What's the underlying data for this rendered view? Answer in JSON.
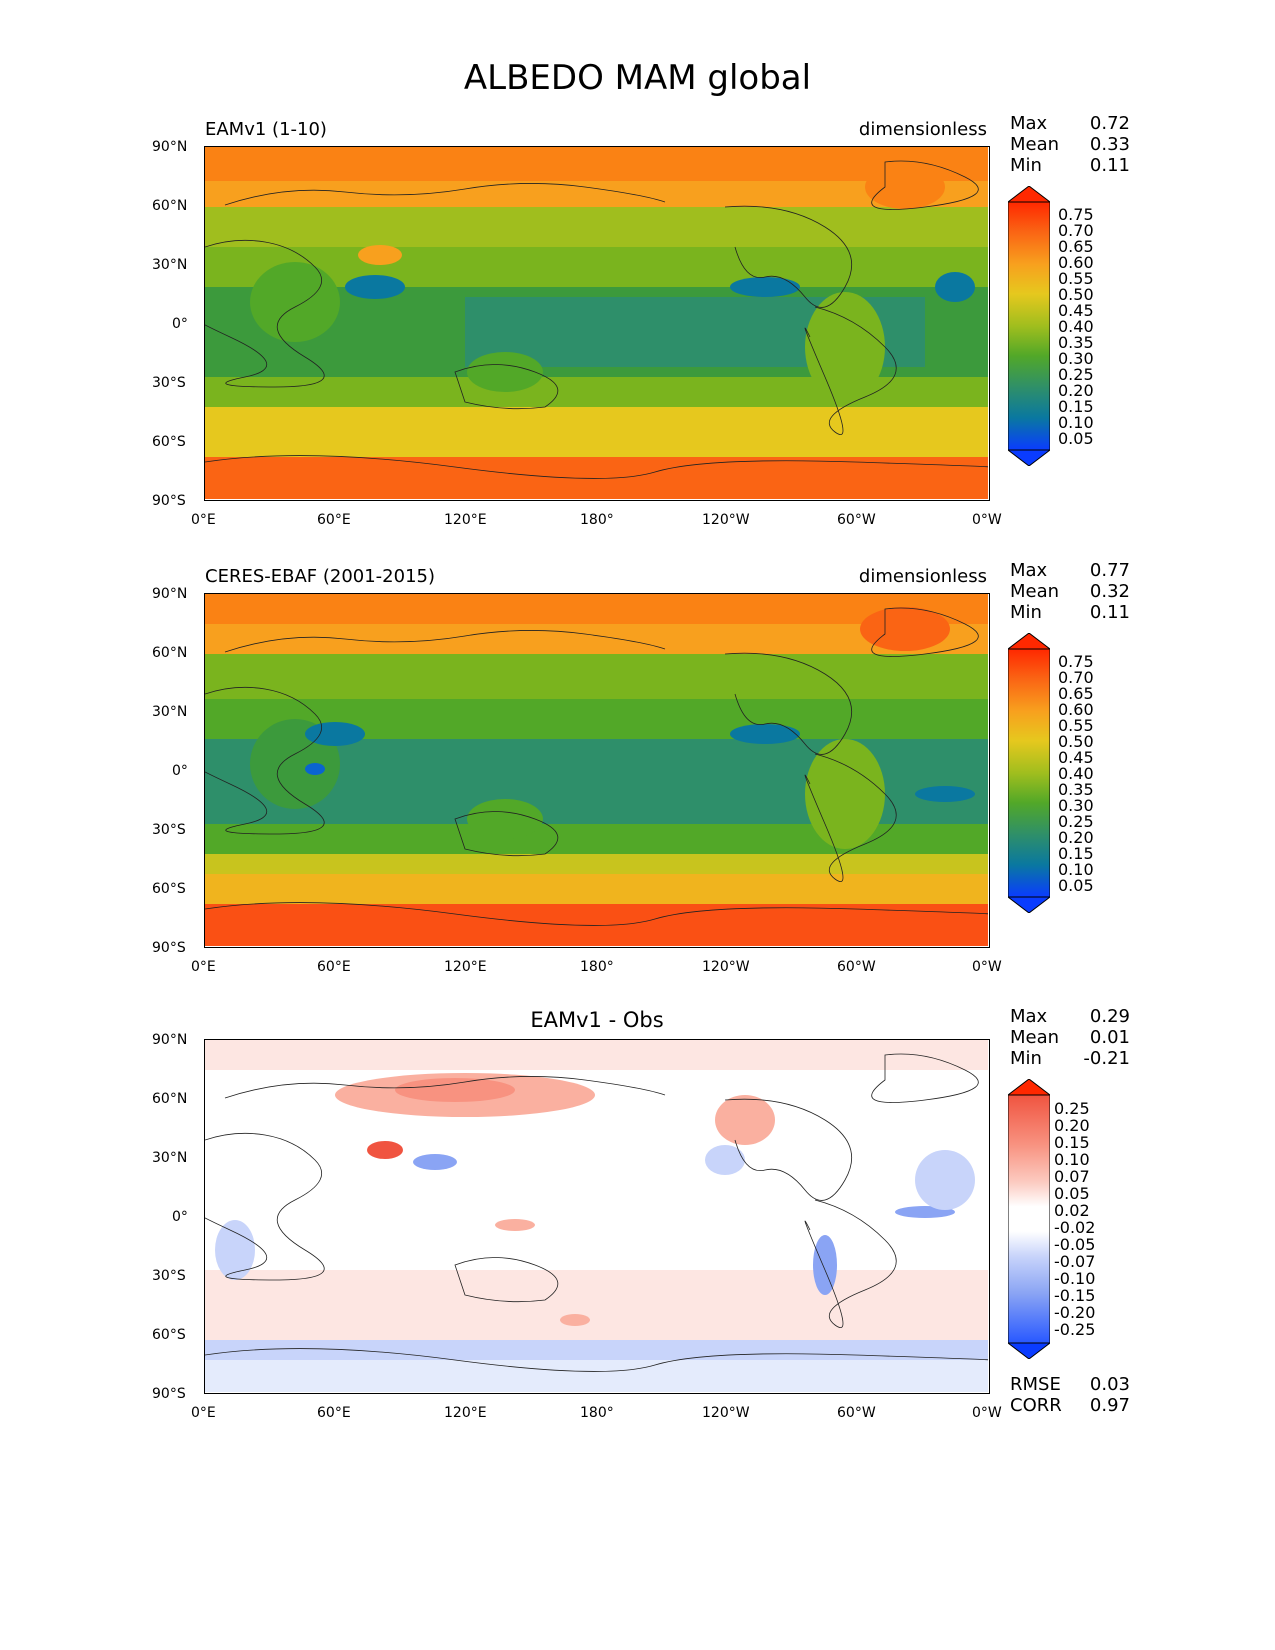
{
  "title": "ALBEDO MAM global",
  "panels": [
    {
      "title": "EAMv1 (1-10)",
      "units": "dimensionless",
      "stats": [
        {
          "label": "Max",
          "value": "0.72"
        },
        {
          "label": "Mean",
          "value": "0.33"
        },
        {
          "label": "Min",
          "value": "0.11"
        }
      ],
      "colorbar_labels": [
        "0.75",
        "0.70",
        "0.65",
        "0.60",
        "0.55",
        "0.50",
        "0.45",
        "0.40",
        "0.35",
        "0.30",
        "0.25",
        "0.20",
        "0.15",
        "0.10",
        "0.05"
      ]
    },
    {
      "title": "CERES-EBAF (2001-2015)",
      "units": "dimensionless",
      "stats": [
        {
          "label": "Max",
          "value": "0.77"
        },
        {
          "label": "Mean",
          "value": "0.32"
        },
        {
          "label": "Min",
          "value": "0.11"
        }
      ],
      "colorbar_labels": [
        "0.75",
        "0.70",
        "0.65",
        "0.60",
        "0.55",
        "0.50",
        "0.45",
        "0.40",
        "0.35",
        "0.30",
        "0.25",
        "0.20",
        "0.15",
        "0.10",
        "0.05"
      ]
    },
    {
      "title": "EAMv1 - Obs",
      "units": "",
      "stats": [
        {
          "label": "Max",
          "value": "0.29"
        },
        {
          "label": "Mean",
          "value": "0.01"
        },
        {
          "label": "Min",
          "value": "-0.21"
        }
      ],
      "extra_stats": [
        {
          "label": "RMSE",
          "value": "0.03"
        },
        {
          "label": "CORR",
          "value": "0.97"
        }
      ],
      "colorbar_labels": [
        "0.25",
        "0.20",
        "0.15",
        "0.10",
        "0.07",
        "0.05",
        "0.02",
        "-0.02",
        "-0.05",
        "-0.07",
        "-0.10",
        "-0.15",
        "-0.20",
        "-0.25"
      ]
    }
  ],
  "lat_ticks": [
    "90°N",
    "60°N",
    "30°N",
    "0°",
    "30°S",
    "60°S",
    "90°S"
  ],
  "lon_ticks": [
    "0°E",
    "60°E",
    "120°E",
    "180°",
    "120°W",
    "60°W",
    "0°W"
  ],
  "colors": {
    "albedo_scale": [
      "#0a3cff",
      "#0a64d0",
      "#0a78a0",
      "#2e8f6a",
      "#3c9a3c",
      "#52a828",
      "#7ab41e",
      "#a0be1e",
      "#c8c41e",
      "#e6c81e",
      "#f0b41e",
      "#f8a01e",
      "#fa8214",
      "#fa6414",
      "#fa460a",
      "#ff2800"
    ],
    "diff_scale": [
      "#0a3cff",
      "#2858ff",
      "#4a74f0",
      "#6a8cf0",
      "#8aa4f4",
      "#a8bcf8",
      "#c8d4fa",
      "#e4ebfc",
      "#ffffff",
      "#fde6e2",
      "#fccac0",
      "#fab0a0",
      "#f89280",
      "#f47460",
      "#f05440",
      "#ff2800"
    ]
  }
}
